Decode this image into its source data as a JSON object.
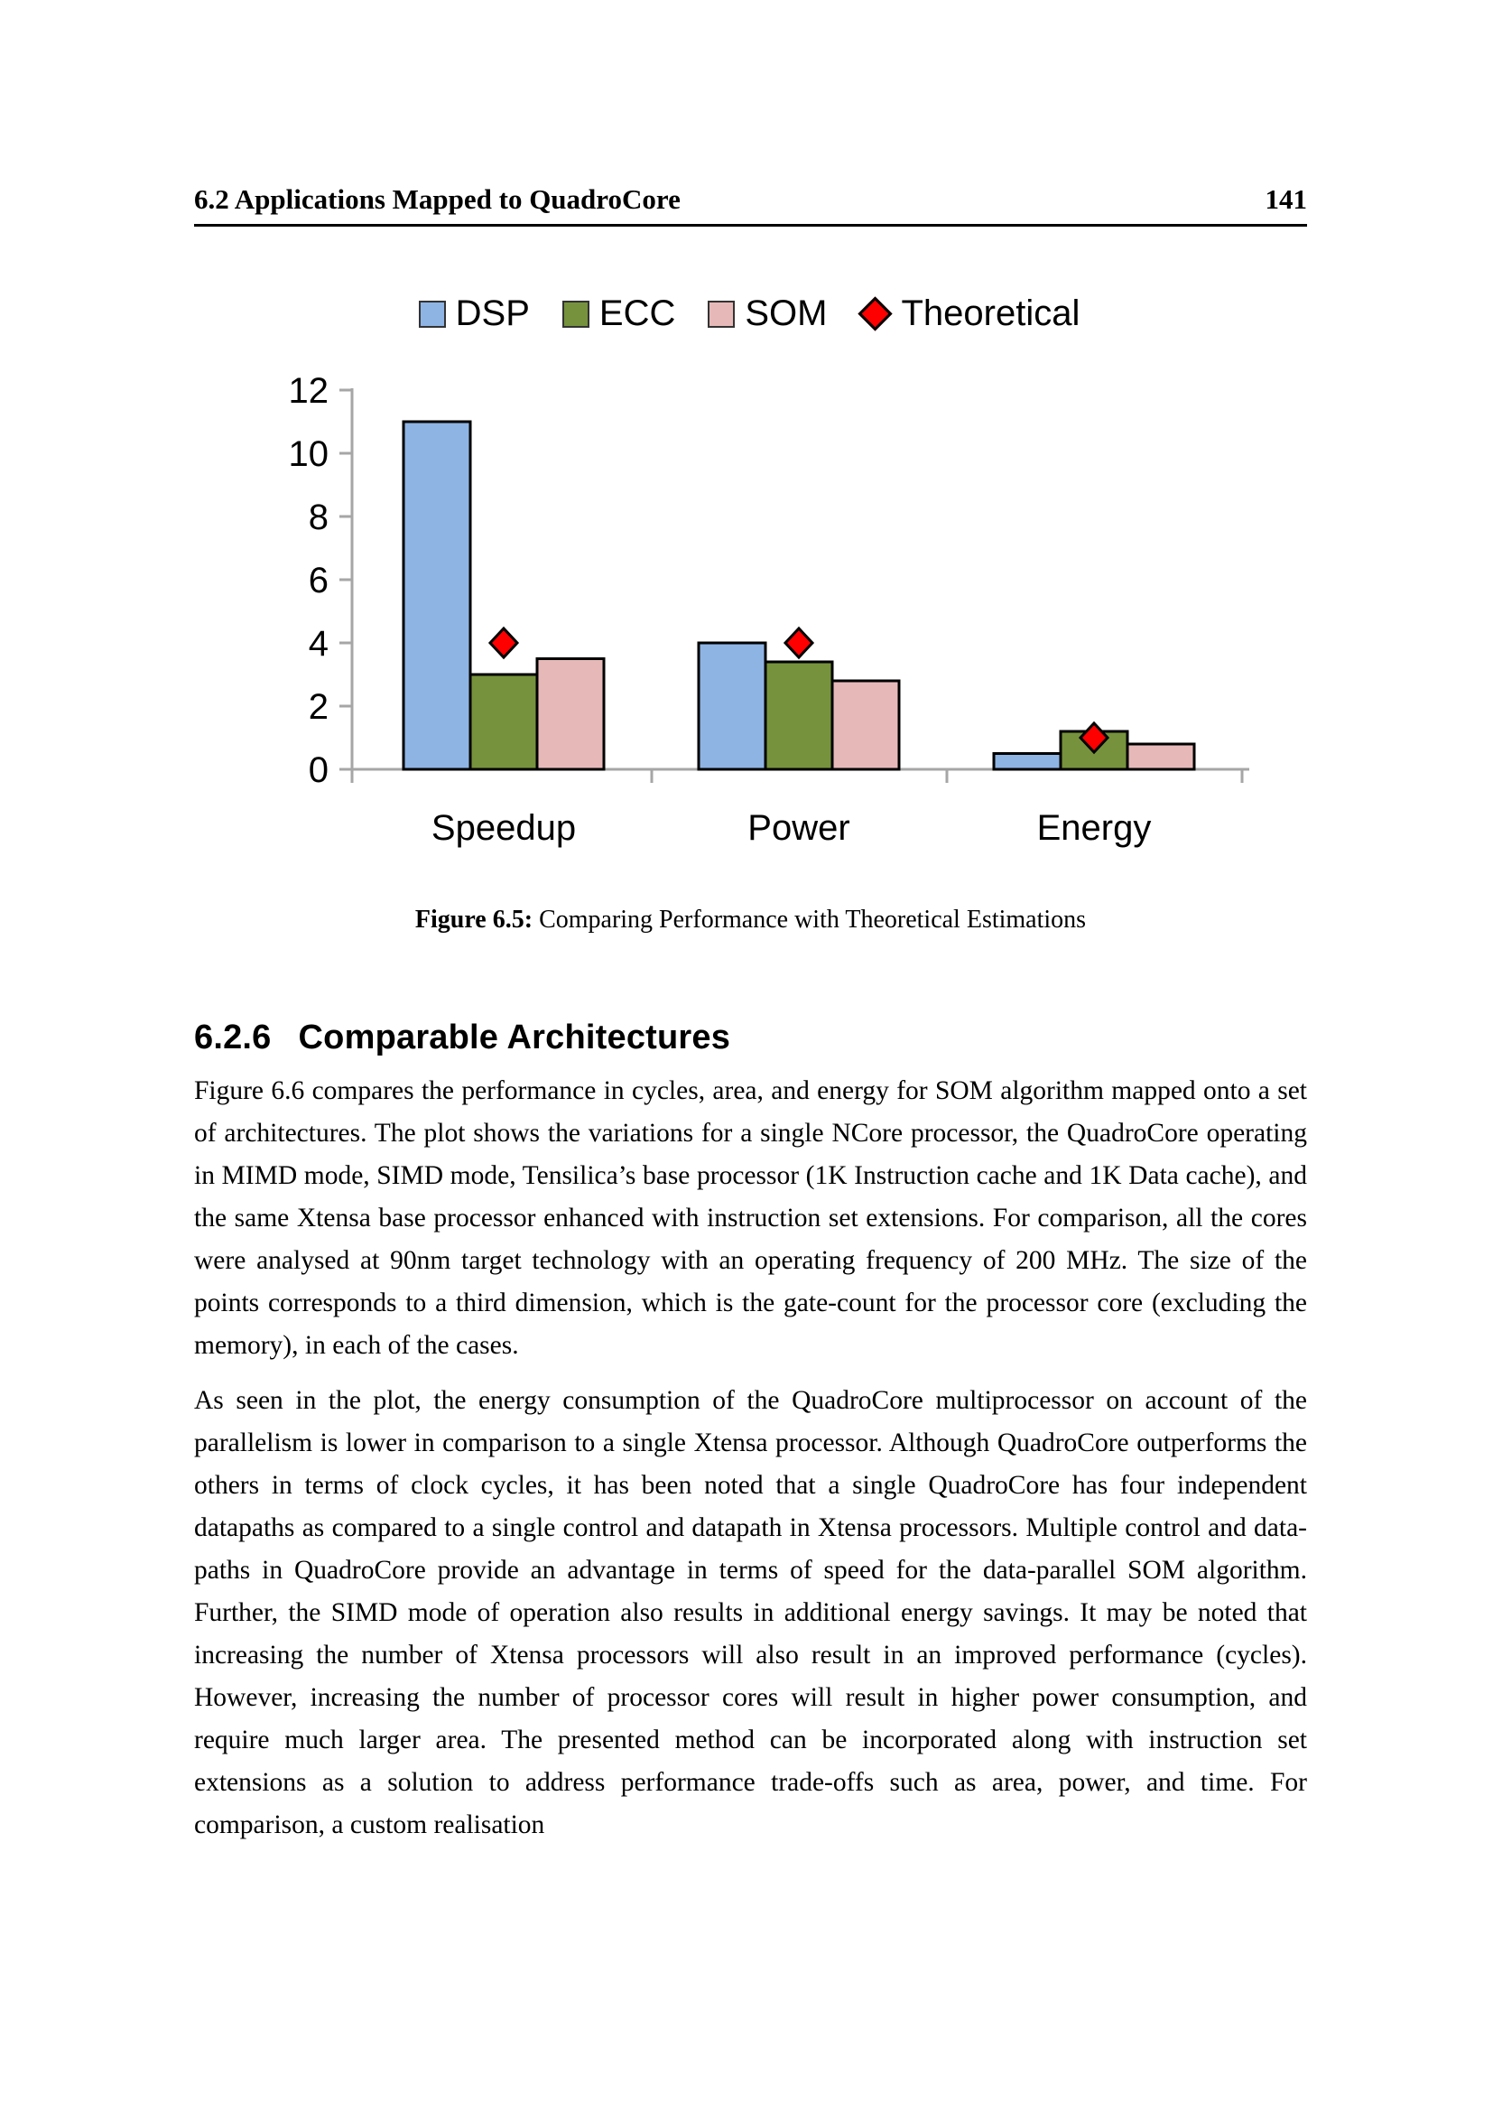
{
  "page": {
    "header": {
      "section": "6.2 Applications Mapped to QuadroCore",
      "page_number": "141"
    },
    "figure": {
      "caption_label": "Figure 6.5:",
      "caption_text": " Comparing Performance with Theoretical Estimations"
    },
    "section_heading": {
      "number": "6.2.6",
      "title": "Comparable Architectures"
    },
    "paragraphs": [
      "Figure 6.6 compares the performance in cycles, area, and energy for SOM algorithm mapped onto a set of architectures. The plot shows the variations for a single NCore processor, the QuadroCore operating in MIMD mode, SIMD mode, Tensilica’s base processor (1K Instruction cache and 1K Data cache), and the same Xtensa base processor enhanced with instruction set extensions. For comparison, all the cores were analysed at 90nm target technology with an operating frequency of 200 MHz. The size of the points corresponds to a third dimension, which is the gate-count for the processor core (excluding the memory), in each of the cases.",
      "As seen in the plot, the energy consumption of the QuadroCore multiprocessor on account of the parallelism is lower in comparison to a single Xtensa processor. Although QuadroCore outperforms the others in terms of clock cycles, it has been noted that a single QuadroCore has four independent datapaths as compared to a single control and datapath in Xtensa processors. Multiple control and data-paths in QuadroCore provide an advantage in terms of speed for the data-parallel SOM algorithm. Further, the SIMD mode of operation also results in additional energy savings. It may be noted that increasing the number of Xtensa processors will also result in an improved performance (cycles). However, increasing the number of processor cores will result in higher power consumption, and require much larger area. The presented method can be incorporated along with instruction set extensions as a solution to address performance trade-offs such as area, power, and time. For comparison, a custom realisation"
    ]
  },
  "chart_data": {
    "type": "bar",
    "title": "",
    "xlabel": "",
    "ylabel": "",
    "categories": [
      "Speedup",
      "Power",
      "Energy"
    ],
    "series": [
      {
        "name": "DSP",
        "color": "#8EB4E3",
        "values": [
          11,
          4,
          0.5
        ]
      },
      {
        "name": "ECC",
        "color": "#76923C",
        "values": [
          3,
          3.4,
          1.2
        ]
      },
      {
        "name": "SOM",
        "color": "#E6B9B8",
        "values": [
          3.5,
          2.8,
          0.8
        ]
      }
    ],
    "marker_series": {
      "name": "Theoretical",
      "shape": "diamond",
      "color": "#FF0000",
      "values": [
        4,
        4,
        1
      ]
    },
    "ylim": [
      0,
      12
    ],
    "yticks": [
      0,
      2,
      4,
      6,
      8,
      10,
      12
    ],
    "legend_position": "top",
    "grid": false,
    "axis_color": "#A6A6A6",
    "bar_outline_color": "#000000"
  }
}
